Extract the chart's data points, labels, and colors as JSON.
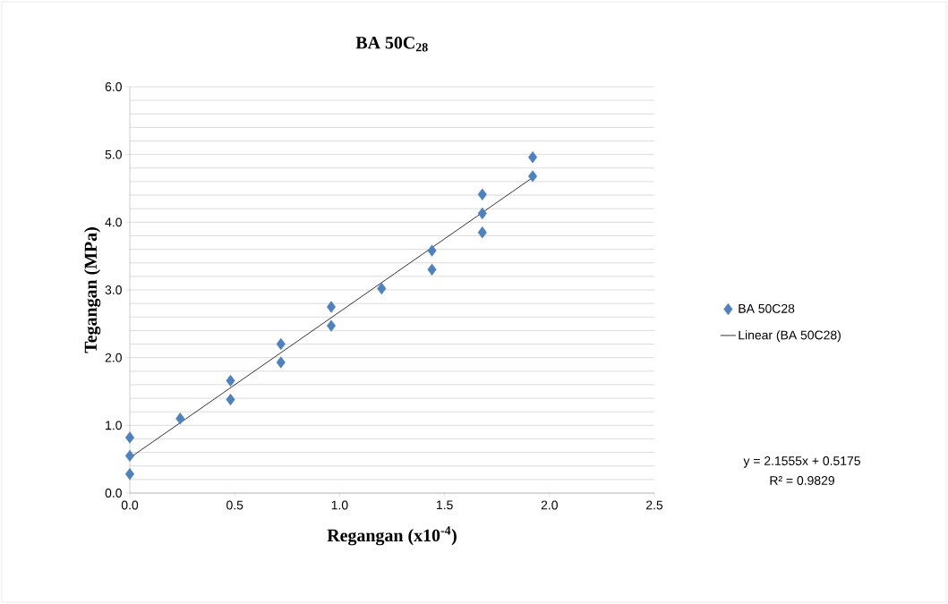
{
  "chart_data": {
    "type": "scatter",
    "title": "BA 50C$_{28}$",
    "xlabel": "Regangan (x10$^{-4}$)",
    "ylabel": "Tegangan (MPa)",
    "xlim": [
      0,
      2.5
    ],
    "ylim": [
      0,
      6
    ],
    "xticks": [
      {
        "value": 0,
        "label": "0.0"
      },
      0.5,
      {
        "value": 1,
        "label": "1.0"
      },
      1.5,
      {
        "value": 2,
        "label": "2.0"
      },
      2.5
    ],
    "yticks": [
      {
        "value": 0,
        "label": "0.0"
      },
      {
        "value": 1,
        "label": "1.0"
      },
      {
        "value": 2,
        "label": "2.0"
      },
      {
        "value": 3,
        "label": "3.0"
      },
      {
        "value": 4,
        "label": "4.0"
      },
      {
        "value": 5,
        "label": "5.0"
      },
      {
        "value": 6,
        "label": "6.0"
      }
    ],
    "grid": "y",
    "legend": "right",
    "series": [
      {
        "name": "BA 50C28",
        "marker": "diamond",
        "color": "#4f81bd",
        "x": [
          0,
          0,
          0,
          0.24,
          0.48,
          0.48,
          0.72,
          0.72,
          0.96,
          0.96,
          1.2,
          1.44,
          1.44,
          1.68,
          1.68,
          1.68,
          1.92,
          1.92
        ],
        "values": [
          0.82,
          0.55,
          0.28,
          1.1,
          1.66,
          1.38,
          2.2,
          1.93,
          2.75,
          2.47,
          3.02,
          3.58,
          3.3,
          4.41,
          4.13,
          3.85,
          4.96,
          4.68
        ]
      },
      {
        "name": "Linear (BA 50C28)",
        "type": "line",
        "marker": "none",
        "color": "#000000",
        "line_style": "solid",
        "x": [
          0,
          1.92
        ],
        "values": [
          0.52,
          4.66
        ]
      }
    ],
    "annotations": [
      "y = 2.1555x + 0.5175",
      "R² = 0.9829"
    ]
  }
}
